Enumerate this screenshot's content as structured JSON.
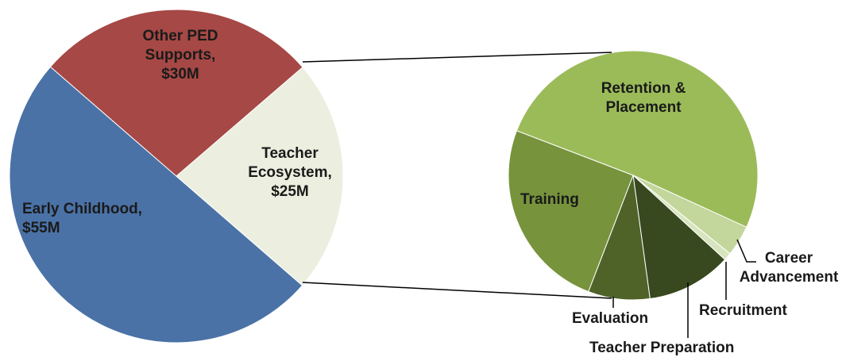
{
  "chart_data": [
    {
      "type": "pie",
      "categories": [
        "Early Childhood,",
        "Teacher Ecosystem,",
        "Other PED Supports,"
      ],
      "values": [
        55,
        25,
        30
      ],
      "value_labels": [
        "$55M",
        "$25M",
        "$30M"
      ],
      "colors": [
        "#4a72a6",
        "#ecefdf",
        "#a64845"
      ]
    },
    {
      "type": "pie",
      "categories": [
        "Retention & Placement",
        "Career Advancement",
        "Recruitment",
        "Teacher Preparation",
        "Evaluation",
        "Training"
      ],
      "values": [
        51,
        4,
        1,
        11,
        8,
        25
      ],
      "colors": [
        "#9bbb59",
        "#c3d69b",
        "#d7e4bd",
        "#38481f",
        "#4f6228",
        "#77933c"
      ]
    }
  ]
}
